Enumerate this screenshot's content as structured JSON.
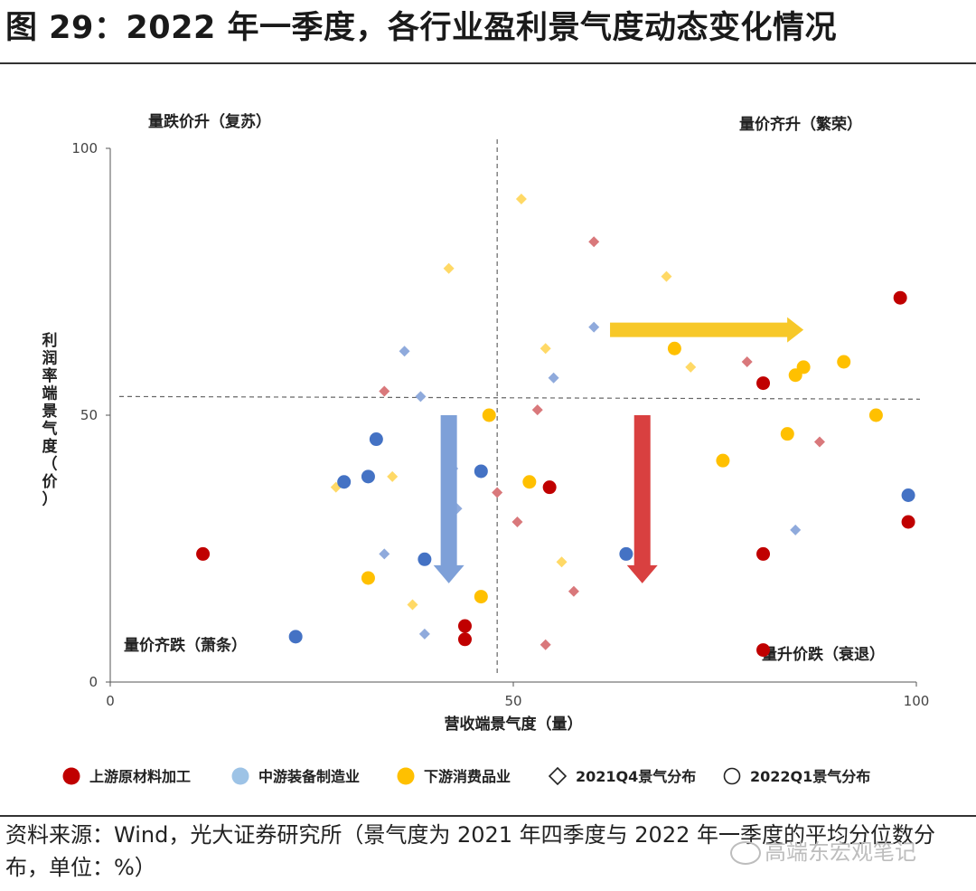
{
  "figure_title": "图 29：2022 年一季度，各行业盈利景气度动态变化情况",
  "source_note": "资料来源：Wind，光大证券研究所（景气度为 2021 年四季度与 2022 年一季度的平均分位数分布，单位：%）",
  "watermark": "高端东宏观笔记",
  "chart_data": {
    "type": "scatter",
    "xlabel": "营收端景气度（量）",
    "ylabel": "利润率端景气度（价）",
    "xlim": [
      0,
      100
    ],
    "ylim": [
      0,
      100
    ],
    "x_ticks": [
      "0",
      "50",
      "100"
    ],
    "y_ticks": [
      "0",
      "50",
      "100"
    ],
    "reference_lines": {
      "x": 48,
      "y_left": 53.5,
      "y_right": 53
    },
    "quadrant_labels": {
      "top_left": "量跌价升（复苏）",
      "top_right": "量价齐升（繁荣）",
      "bottom_left": "量价齐跌（萧条）",
      "bottom_right": "量升价跌（衰退）"
    },
    "colors": {
      "upstream": "#c00000",
      "midstream": "#4472c4",
      "downstream": "#ffc000",
      "upstream_light": "#d9787b",
      "midstream_light": "#8faadc",
      "downstream_light": "#ffd966",
      "midstream_legend": "#9dc3e6",
      "arrow_yellow": "#f7c829",
      "arrow_blue": "#7ea0d8",
      "arrow_red": "#d94040"
    },
    "legend": [
      {
        "key": "upstream",
        "label": "上游原材料加工",
        "marker": "circle"
      },
      {
        "key": "midstream",
        "label": "中游装备制造业",
        "marker": "circle"
      },
      {
        "key": "downstream",
        "label": "下游消费品业",
        "marker": "circle"
      },
      {
        "key": "q4",
        "label": "2021Q4景气分布",
        "marker": "diamond-outline"
      },
      {
        "key": "q1",
        "label": "2022Q1景气分布",
        "marker": "circle-outline"
      }
    ],
    "series": [
      {
        "industry": "upstream",
        "period": "2022Q1",
        "marker": "circle",
        "points": [
          [
            11.5,
            24
          ],
          [
            44,
            10.5
          ],
          [
            44,
            8
          ],
          [
            54.5,
            36.5
          ],
          [
            81,
            56
          ],
          [
            81,
            24
          ],
          [
            81,
            6
          ],
          [
            98,
            72
          ],
          [
            99,
            30
          ]
        ]
      },
      {
        "industry": "midstream",
        "period": "2022Q1",
        "marker": "circle",
        "points": [
          [
            23,
            8.5
          ],
          [
            29,
            37.5
          ],
          [
            32,
            38.5
          ],
          [
            33,
            45.5
          ],
          [
            39,
            23
          ],
          [
            46,
            39.5
          ],
          [
            64,
            24
          ],
          [
            99,
            35
          ]
        ]
      },
      {
        "industry": "downstream",
        "period": "2022Q1",
        "marker": "circle",
        "points": [
          [
            32,
            19.5
          ],
          [
            46,
            16
          ],
          [
            47,
            50
          ],
          [
            52,
            37.5
          ],
          [
            70,
            62.5
          ],
          [
            76,
            41.5
          ],
          [
            84,
            46.5
          ],
          [
            85,
            57.5
          ],
          [
            86,
            59
          ],
          [
            91,
            60
          ],
          [
            95,
            50
          ]
        ]
      },
      {
        "industry": "upstream",
        "period": "2021Q4",
        "marker": "diamond",
        "points": [
          [
            34,
            54.5
          ],
          [
            48,
            35.5
          ],
          [
            50.5,
            30
          ],
          [
            53,
            51
          ],
          [
            54,
            7
          ],
          [
            57.5,
            17
          ],
          [
            60,
            82.5
          ],
          [
            79,
            60
          ],
          [
            88,
            45
          ]
        ]
      },
      {
        "industry": "midstream",
        "period": "2021Q4",
        "marker": "diamond",
        "points": [
          [
            34,
            24
          ],
          [
            36.5,
            62
          ],
          [
            38.5,
            53.5
          ],
          [
            39,
            9
          ],
          [
            42,
            28.5
          ],
          [
            42.5,
            40
          ],
          [
            43,
            32.5
          ],
          [
            55,
            57
          ],
          [
            60,
            66.5
          ],
          [
            85,
            28.5
          ]
        ]
      },
      {
        "industry": "downstream",
        "period": "2021Q4",
        "marker": "diamond",
        "points": [
          [
            28,
            36.5
          ],
          [
            35,
            38.5
          ],
          [
            37.5,
            14.5
          ],
          [
            42,
            77.5
          ],
          [
            51,
            90.5
          ],
          [
            54,
            62.5
          ],
          [
            56,
            22.5
          ],
          [
            69,
            76
          ],
          [
            72,
            59
          ]
        ]
      }
    ],
    "arrows": [
      {
        "color": "arrow_yellow",
        "from": [
          62,
          66
        ],
        "to": [
          86,
          66
        ]
      },
      {
        "color": "arrow_blue",
        "from": [
          42,
          50
        ],
        "to": [
          42,
          18.5
        ]
      },
      {
        "color": "arrow_red",
        "from": [
          66,
          50
        ],
        "to": [
          66,
          18.5
        ]
      }
    ]
  }
}
